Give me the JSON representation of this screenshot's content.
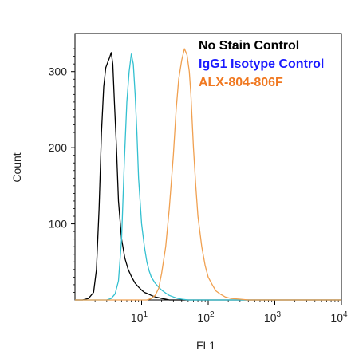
{
  "chart_data": {
    "type": "line",
    "title": "",
    "xlabel": "FL1",
    "ylabel": "Count",
    "x_scale": "log",
    "xlim": [
      1,
      10000
    ],
    "ylim": [
      0,
      350
    ],
    "x_ticks": [
      {
        "value": 10,
        "base": "10",
        "exp": "1"
      },
      {
        "value": 100,
        "base": "10",
        "exp": "2"
      },
      {
        "value": 1000,
        "base": "10",
        "exp": "3"
      },
      {
        "value": 10000,
        "base": "10",
        "exp": "4"
      }
    ],
    "y_ticks": [
      100,
      200,
      300
    ],
    "legend_position": "top-right",
    "series": [
      {
        "name": "No Stain Control",
        "color": "#000000",
        "x": [
          1.3,
          1.6,
          1.9,
          2.1,
          2.3,
          2.5,
          2.7,
          2.9,
          3.1,
          3.3,
          3.5,
          3.7,
          3.9,
          4.2,
          4.5,
          5.0,
          5.6,
          6.3,
          7.1,
          8.0,
          9.0,
          10,
          11,
          12.5,
          14,
          16,
          18,
          20,
          23,
          26
        ],
        "y": [
          0,
          2,
          10,
          40,
          120,
          220,
          280,
          305,
          312,
          318,
          325,
          310,
          260,
          200,
          130,
          80,
          55,
          40,
          30,
          22,
          17,
          13,
          10,
          8,
          6,
          4,
          3,
          2,
          1,
          0
        ]
      },
      {
        "name": "IgG1 Isotype Control",
        "color": "#33c0d0",
        "x": [
          3.0,
          3.5,
          4.0,
          4.5,
          5.0,
          5.5,
          6.0,
          6.5,
          7.0,
          7.5,
          8.0,
          8.5,
          9.0,
          10,
          11,
          12,
          13,
          14,
          16,
          18,
          20,
          23,
          26,
          30,
          35,
          40,
          50
        ],
        "y": [
          0,
          2,
          8,
          25,
          80,
          180,
          260,
          300,
          323,
          310,
          270,
          220,
          160,
          100,
          70,
          50,
          38,
          30,
          22,
          17,
          13,
          9,
          6,
          4,
          2,
          1,
          0
        ]
      },
      {
        "name": "ALX-804-806F",
        "color": "#f0a050",
        "x": [
          12,
          14,
          16,
          18,
          20,
          23,
          26,
          30,
          33,
          36,
          40,
          44,
          48,
          52,
          55,
          60,
          65,
          70,
          80,
          90,
          100,
          115,
          130,
          150,
          180,
          220,
          300,
          400
        ],
        "y": [
          0,
          2,
          6,
          15,
          35,
          70,
          120,
          190,
          250,
          290,
          315,
          330,
          322,
          300,
          270,
          200,
          150,
          110,
          70,
          45,
          30,
          20,
          12,
          8,
          4,
          2,
          1,
          0
        ]
      }
    ]
  }
}
